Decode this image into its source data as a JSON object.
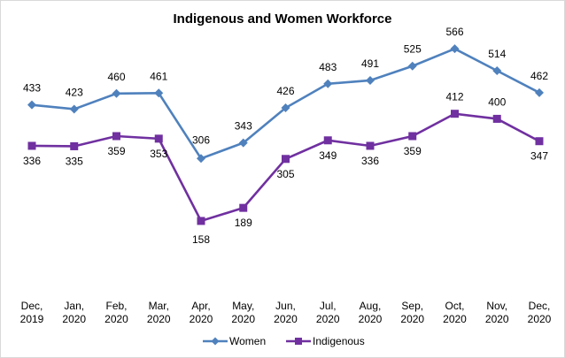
{
  "chart_data": {
    "type": "line",
    "title": "Indigenous and Women Workforce",
    "xlabel": "",
    "ylabel": "",
    "categories": [
      [
        "Dec,",
        "2019"
      ],
      [
        "Jan,",
        "2020"
      ],
      [
        "Feb,",
        "2020"
      ],
      [
        "Mar,",
        "2020"
      ],
      [
        "Apr,",
        "2020"
      ],
      [
        "May,",
        "2020"
      ],
      [
        "Jun,",
        "2020"
      ],
      [
        "Jul,",
        "2020"
      ],
      [
        "Aug,",
        "2020"
      ],
      [
        "Sep,",
        "2020"
      ],
      [
        "Oct,",
        "2020"
      ],
      [
        "Nov,",
        "2020"
      ],
      [
        "Dec,",
        "2020"
      ]
    ],
    "series": [
      {
        "name": "Women",
        "color": "#4F81BD",
        "marker": "diamond",
        "values": [
          433,
          423,
          460,
          461,
          306,
          343,
          426,
          483,
          491,
          525,
          566,
          514,
          462
        ]
      },
      {
        "name": "Indigenous",
        "color": "#7030A0",
        "marker": "square",
        "values": [
          336,
          335,
          359,
          353,
          158,
          189,
          305,
          349,
          336,
          359,
          412,
          400,
          347
        ]
      }
    ],
    "grid": false,
    "legend_position": "bottom"
  }
}
